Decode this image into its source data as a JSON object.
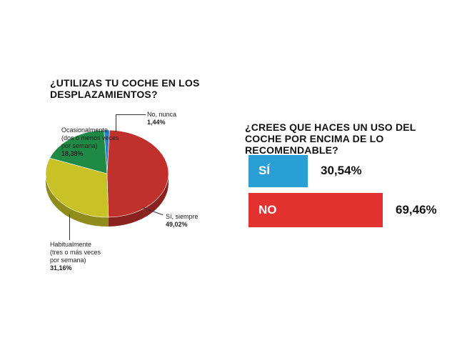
{
  "chart_data": [
    {
      "type": "pie",
      "title": "¿UTILIZAS TU COCHE EN LOS DESPLAZAMIENTOS?",
      "slices": [
        {
          "label": "No, nunca",
          "value_label": "1,44%",
          "value": 1.44,
          "color": "#2a7fc0"
        },
        {
          "label": "Sí, siempre",
          "value_label": "49,02%",
          "value": 49.02,
          "color": "#c0302c"
        },
        {
          "label": "Habitualmente (tres o más veces por semana)",
          "label_lines": [
            "Habitualmente",
            "(tres o más veces",
            "por semana)"
          ],
          "value_label": "31,16%",
          "value": 31.16,
          "color": "#c8c226"
        },
        {
          "label": "Ocasionalmente (dos o menos veces por semana)",
          "label_lines": [
            "Ocasionalmente",
            "(dos o menos veces",
            "por semana)"
          ],
          "value_label": "18,38%",
          "value": 18.38,
          "color": "#1f8a45"
        }
      ]
    },
    {
      "type": "bar",
      "title": "¿CREES QUE HACES UN USO DEL COCHE POR ENCIMA DE LO RECOMENDABLE?",
      "categories": [
        "SÍ",
        "NO"
      ],
      "values": [
        30.54,
        69.46
      ],
      "value_labels": [
        "30,54%",
        "69,46%"
      ],
      "colors": [
        "#2a9fd6",
        "#e2312f"
      ]
    }
  ]
}
